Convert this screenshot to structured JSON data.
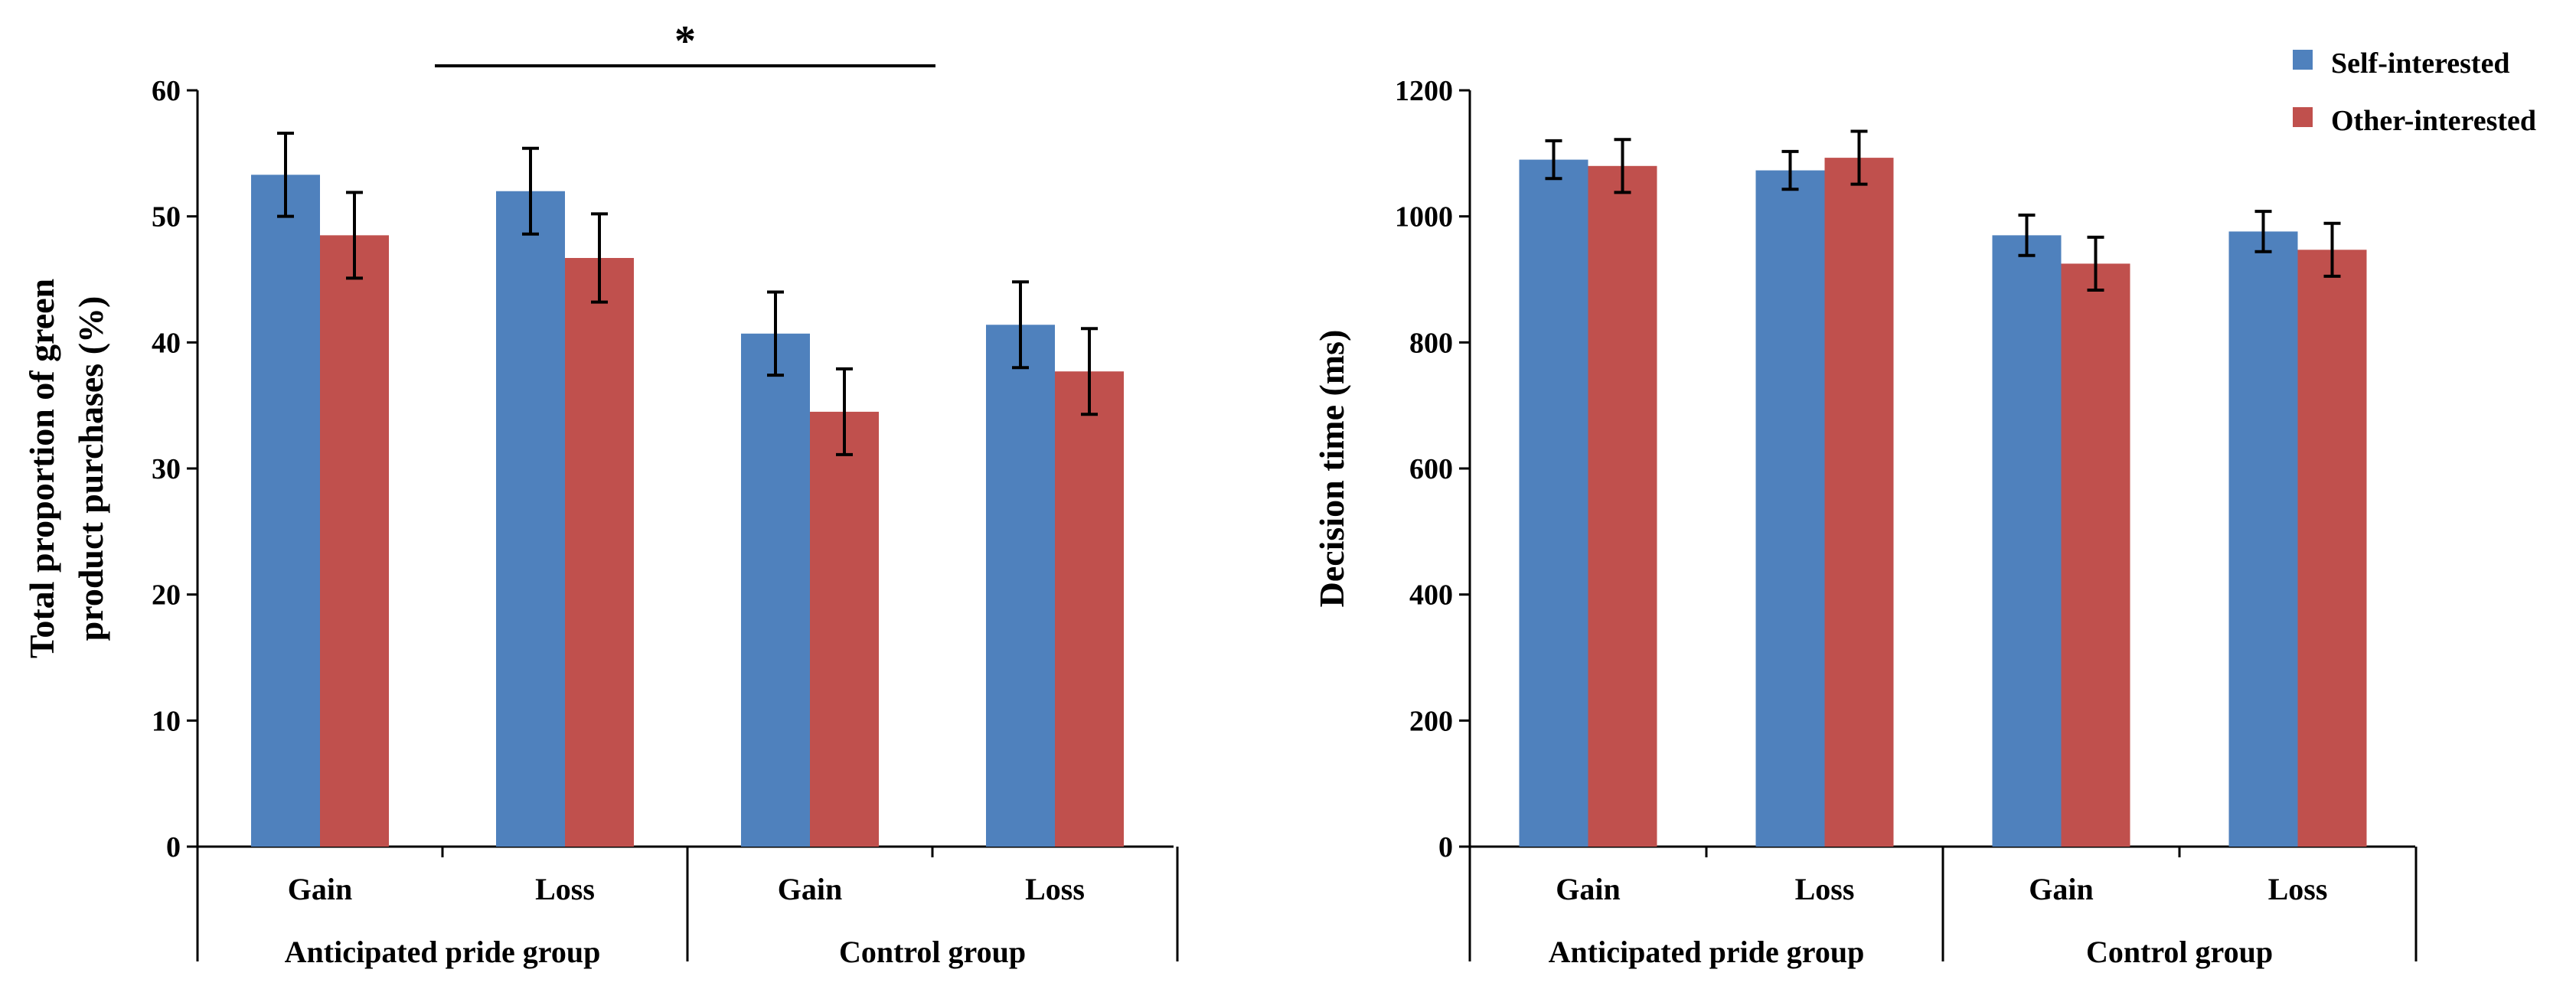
{
  "colors": {
    "self_interested": "#4F81BD",
    "other_interested": "#C0504D",
    "axis": "#000000"
  },
  "legend": {
    "items": [
      {
        "label": "Self-interested",
        "color": "#4F81BD"
      },
      {
        "label": "Other-interested",
        "color": "#C0504D"
      }
    ],
    "position": "top-right"
  },
  "chart_data": [
    {
      "type": "bar",
      "ylabel_lines": [
        "Total proportion of green",
        "product purchases (%)"
      ],
      "ylim": [
        0,
        60
      ],
      "yticks": [
        0,
        10,
        20,
        30,
        40,
        50,
        60
      ],
      "categories": [
        "Gain",
        "Loss",
        "Gain",
        "Loss"
      ],
      "groups": [
        {
          "label": "Anticipated pride group",
          "categories": [
            "Gain",
            "Loss"
          ]
        },
        {
          "label": "Control group",
          "categories": [
            "Gain",
            "Loss"
          ]
        }
      ],
      "series": [
        {
          "name": "Self-interested",
          "values": [
            53.3,
            52.0,
            40.7,
            41.4
          ],
          "errors": [
            3.3,
            3.4,
            3.3,
            3.4
          ]
        },
        {
          "name": "Other-interested",
          "values": [
            48.5,
            46.7,
            34.5,
            37.7
          ],
          "errors": [
            3.4,
            3.5,
            3.4,
            3.4
          ]
        }
      ],
      "significance": {
        "label": "*",
        "between": [
          "Anticipated pride group",
          "Control group"
        ]
      }
    },
    {
      "type": "bar",
      "ylabel_lines": [
        "Decision time (ms)"
      ],
      "ylim": [
        0,
        1200
      ],
      "yticks": [
        0,
        200,
        400,
        600,
        800,
        1000,
        1200
      ],
      "categories": [
        "Gain",
        "Loss",
        "Gain",
        "Loss"
      ],
      "groups": [
        {
          "label": "Anticipated pride group",
          "categories": [
            "Gain",
            "Loss"
          ]
        },
        {
          "label": "Control group",
          "categories": [
            "Gain",
            "Loss"
          ]
        }
      ],
      "series": [
        {
          "name": "Self-interested",
          "values": [
            1090,
            1073,
            970,
            976
          ],
          "errors": [
            30,
            30,
            32,
            32
          ]
        },
        {
          "name": "Other-interested",
          "values": [
            1080,
            1093,
            925,
            947
          ],
          "errors": [
            42,
            42,
            42,
            42
          ]
        }
      ]
    }
  ]
}
